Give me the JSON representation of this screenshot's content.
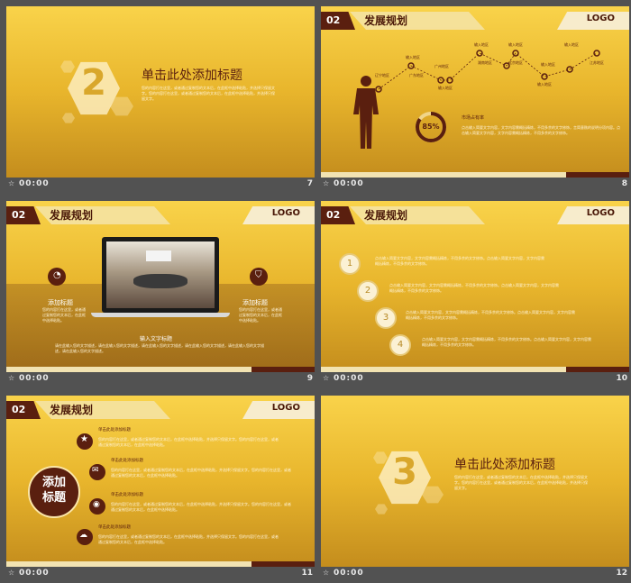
{
  "footer_time": "00:00",
  "slides": {
    "s7": {
      "number": "7",
      "big_digit": "2",
      "title": "单击此处添加标题",
      "body": "您的内容打在这里，或者通过复制您的文本后，在此框中选择粘贴，并选择只保留文字。您的内容打在这里，或者通过复制您的文本后，在此框中选择粘贴，并选择只保留文字。"
    },
    "s8": {
      "number": "8",
      "badge": "02",
      "title": "发展规划",
      "logo": "LOGO",
      "nodes": [
        "辽宁地区",
        "输入地区",
        "广东地区",
        "广州地区",
        "输入地区",
        "输入地区",
        "湖南地区",
        "输入地区",
        "北京地区",
        "输入地区",
        "输入地区",
        "江苏地区",
        "输入地区"
      ],
      "percent": "85%",
      "market_title": "市场占有率",
      "market_body": "点击输入简要文字内容，文字内容需概括精炼，不用多余的文字修饰，言简意赅的说明分项内容。点击输入简要文字内容，文字内容需概括精炼，不用多余的文字修饰。"
    },
    "s9": {
      "number": "9",
      "badge": "02",
      "title": "发展规划",
      "logo": "LOGO",
      "left_label": "添加标题",
      "left_body": "您的内容打在这里，或者通过复制您的文本后，在此框中选择粘贴。",
      "right_label": "添加标题",
      "right_body": "您的内容打在这里，或者通过复制您的文本后，在此框中选择粘贴。",
      "input_title": "输入文字标题",
      "input_body": "请在此输入您的文字描述，请在此输入您的文字描述，请在此输入您的文字描述，请在此输入您的文字描述，请在此输入您的文字描述，请在此输入您的文字描述。"
    },
    "s10": {
      "number": "10",
      "badge": "02",
      "title": "发展规划",
      "logo": "LOGO",
      "items": [
        {
          "n": "1",
          "text": "点击输入简要文字内容，文字内容需概括精炼，不用多余的文字修饰。点击输入简要文字内容，文字内容需概括精炼，不用多余的文字修饰。"
        },
        {
          "n": "2",
          "text": "点击输入简要文字内容，文字内容需概括精炼，不用多余的文字修饰。点击输入简要文字内容，文字内容需概括精炼，不用多余的文字修饰。"
        },
        {
          "n": "3",
          "text": "点击输入简要文字内容，文字内容需概括精炼，不用多余的文字修饰。点击输入简要文字内容，文字内容需概括精炼，不用多余的文字修饰。"
        },
        {
          "n": "4",
          "text": "点击输入简要文字内容，文字内容需概括精炼，不用多余的文字修饰。点击输入简要文字内容，文字内容需概括精炼，不用多余的文字修饰。"
        }
      ]
    },
    "s11": {
      "number": "11",
      "badge": "02",
      "title": "发展规划",
      "logo": "LOGO",
      "circle_line1": "添加",
      "circle_line2": "标题",
      "items": [
        {
          "title": "单击此处添加标题",
          "body": "您的内容打在这里，或者通过复制您的文本后，在此框中选择粘贴，并选择只保留文字。您的内容打在这里，或者通过复制您的文本后，在此框中选择粘贴。"
        },
        {
          "title": "单击此处添加标题",
          "body": "您的内容打在这里，或者通过复制您的文本后，在此框中选择粘贴，并选择只保留文字。您的内容打在这里，或者通过复制您的文本后，在此框中选择粘贴。"
        },
        {
          "title": "单击此处添加标题",
          "body": "您的内容打在这里，或者通过复制您的文本后，在此框中选择粘贴，并选择只保留文字。您的内容打在这里，或者通过复制您的文本后，在此框中选择粘贴。"
        },
        {
          "title": "单击此处添加标题",
          "body": "您的内容打在这里，或者通过复制您的文本后，在此框中选择粘贴，并选择只保留文字。您的内容打在这里，或者通过复制您的文本后，在此框中选择粘贴。"
        }
      ]
    },
    "s12": {
      "number": "12",
      "big_digit": "3",
      "title": "单击此处添加标题",
      "body": "您的内容打在这里，或者通过复制您的文本后，在此框中选择粘贴，并选择只保留文字。您的内容打在这里，或者通过复制您的文本后，在此框中选择粘贴，并选择只保留文字。"
    }
  }
}
